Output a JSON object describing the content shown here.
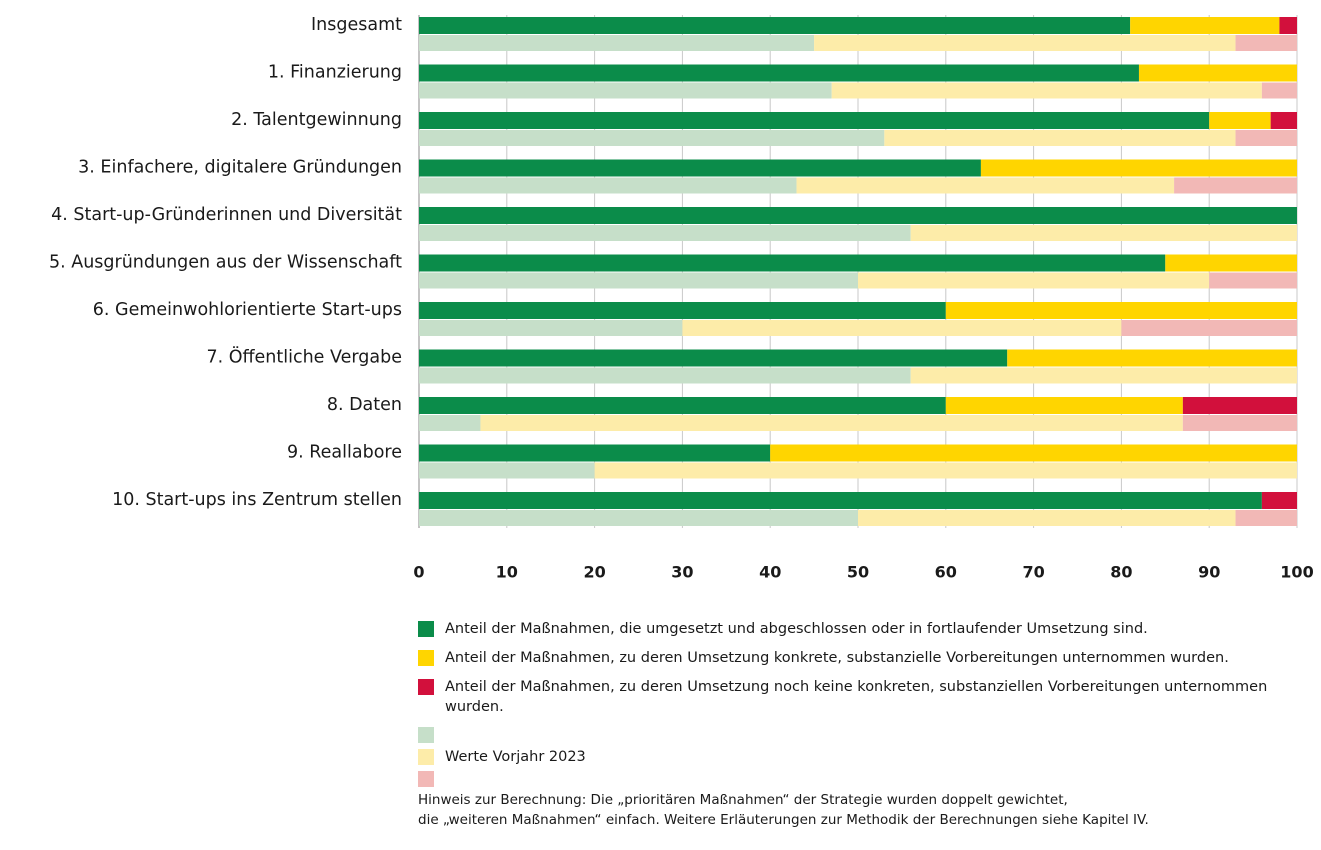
{
  "chart_data": {
    "type": "bar",
    "orientation": "horizontal",
    "stacked": true,
    "categories": [
      "Insgesamt",
      "1. Finanzierung",
      "2. Talentgewinnung",
      "3. Einfachere, digitalere Gründungen",
      "4. Start-up-Gründerinnen und Diversität",
      "5. Ausgründungen aus der Wissenschaft",
      "6. Gemeinwohlorientierte Start-ups",
      "7. Öffentliche Vergabe",
      "8. Daten",
      "9. Reallabore",
      "10. Start-ups ins Zentrum stellen"
    ],
    "series": [
      {
        "name": "Anteil der Maßnahmen, die umgesetzt und abgeschlossen oder in fortlaufender Umsetzung sind.",
        "color": "#0b8c4a",
        "group": "current",
        "values": [
          81,
          82,
          90,
          64,
          100,
          85,
          60,
          67,
          60,
          40,
          96
        ]
      },
      {
        "name": "Anteil der Maßnahmen, zu deren Umsetzung konkrete, substanzielle Vorbereitungen unternommen wurden.",
        "color": "#ffd500",
        "group": "current",
        "values": [
          17,
          18,
          7,
          36,
          0,
          15,
          40,
          33,
          27,
          60,
          0
        ]
      },
      {
        "name": "Anteil der Maßnahmen, zu deren Umsetzung noch keine konkreten, substanziellen Vorbereitungen unternommen wurden.",
        "color": "#d2103c",
        "group": "current",
        "values": [
          2,
          0,
          3,
          0,
          0,
          0,
          0,
          0,
          13,
          0,
          4
        ]
      },
      {
        "color": "#c6dfc9",
        "group": "previous",
        "values": [
          45,
          47,
          53,
          43,
          56,
          50,
          30,
          56,
          7,
          20,
          50
        ]
      },
      {
        "color": "#fdeca9",
        "group": "previous",
        "values": [
          48,
          49,
          40,
          43,
          44,
          40,
          50,
          44,
          80,
          80,
          43
        ]
      },
      {
        "color": "#f2b8b6",
        "group": "previous",
        "values": [
          7,
          4,
          7,
          14,
          0,
          10,
          20,
          0,
          13,
          0,
          7
        ]
      }
    ],
    "previous_label": "Werte Vorjahr 2023",
    "xlim": [
      0,
      100
    ],
    "xticks": [
      0,
      10,
      20,
      30,
      40,
      50,
      60,
      70,
      80,
      90,
      100
    ],
    "grid": true,
    "note": [
      "Hinweis zur Berechnung: Die „prioritären Maßnahmen“ der Strategie wurden doppelt gewichtet,",
      "die „weiteren Maßnahmen“ einfach. Weitere Erläuterungen zur Methodik der Berechnungen siehe Kapitel IV."
    ]
  }
}
